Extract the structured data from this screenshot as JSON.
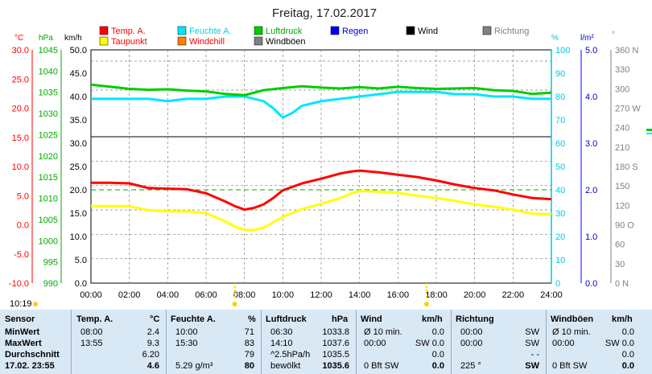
{
  "title": "Freitag, 17.02.2017",
  "legend": {
    "items": [
      {
        "label": "Temp. A.",
        "color": "#ff0000",
        "text_color": "#ff0000"
      },
      {
        "label": "Feuchte A.",
        "color": "#00e5ff",
        "text_color": "#00d0e8"
      },
      {
        "label": "Luftdruck",
        "color": "#00cc00",
        "text_color": "#00aa00"
      },
      {
        "label": "Regen",
        "color": "#0000ff",
        "text_color": "#0000cc"
      },
      {
        "label": "Wind",
        "color": "#000000",
        "text_color": "#000000"
      },
      {
        "label": "Richtung",
        "color": "#808080",
        "text_color": "#808080"
      },
      {
        "label": "Taupunkt",
        "color": "#ffff00",
        "text_color": "#ff0000"
      },
      {
        "label": "Windchill",
        "color": "#ff8000",
        "text_color": "#ff0000"
      },
      {
        "label": "Windböen",
        "color": "#808080",
        "text_color": "#000000"
      }
    ]
  },
  "axis_units": {
    "temp": "°C",
    "pressure": "hPa",
    "wind": "km/h",
    "humidity": "%",
    "rain": "l/m²",
    "direction": "°"
  },
  "colors": {
    "temp": "#ff0000",
    "dew": "#ffff00",
    "humidity": "#00e5ff",
    "pressure": "#00cc00",
    "grid": "#808080",
    "axis_rain": "#0000ff",
    "ref_line": "#00aa00"
  },
  "status": {
    "time_label": "10:19"
  },
  "chart_data": {
    "type": "line",
    "title": "Freitag, 17.02.2017",
    "x_ticks": [
      "00:00",
      "02:00",
      "04:00",
      "06:00",
      "08:00",
      "10:00",
      "12:00",
      "14:00",
      "16:00",
      "18:00",
      "20:00",
      "22:00",
      "24:00"
    ],
    "axes": {
      "temp_c": {
        "range": [
          -10,
          30
        ],
        "ticks": [
          "30.0",
          "25.0",
          "20.0",
          "15.0",
          "10.0",
          "5.0",
          "0.0",
          "-5.0",
          "-10.0"
        ]
      },
      "pressure_hpa": {
        "range": [
          990,
          1045
        ],
        "ticks": [
          "1045",
          "1040",
          "1035",
          "1030",
          "1025",
          "1020",
          "1015",
          "1010",
          "1005",
          "1000",
          "995",
          "990"
        ]
      },
      "wind_kmh_lower": {
        "range": [
          0,
          30
        ],
        "ticks": [
          "30.0",
          "25.0",
          "20.0",
          "15.0",
          "10.0",
          "5.0",
          "0.0"
        ]
      },
      "wind_kmh_upper": {
        "range": [
          35,
          50
        ],
        "ticks": [
          "50.0",
          "45.0",
          "40.0",
          "35.0"
        ]
      },
      "humidity_pct": {
        "range": [
          0,
          100
        ],
        "ticks": [
          "100",
          "90",
          "80",
          "70",
          "60",
          "50",
          "40",
          "30",
          "20",
          "10",
          "0"
        ]
      },
      "rain_lm2": {
        "range": [
          0,
          5
        ],
        "ticks": [
          "5.0",
          "4.0",
          "3.0",
          "2.0",
          "1.0",
          "0.0"
        ]
      },
      "direction_deg": {
        "range": [
          0,
          360
        ],
        "ticks": [
          "360 N",
          "330",
          "300",
          "270 W",
          "240",
          "210",
          "180 S",
          "150",
          "120",
          "90 O",
          "60",
          "30",
          "0 N"
        ]
      }
    },
    "series": [
      {
        "name": "Temp. A.",
        "unit": "°C",
        "x": [
          0,
          1,
          2,
          3,
          4,
          5,
          6,
          7,
          7.5,
          8,
          8.5,
          9,
          9.5,
          10,
          11,
          12,
          13,
          13.5,
          14,
          15,
          16,
          17,
          18,
          19,
          20,
          21,
          22,
          23,
          24
        ],
        "y": [
          7.2,
          7.2,
          7.1,
          6.3,
          6.2,
          6.1,
          5.4,
          4.0,
          3.2,
          2.6,
          2.9,
          3.5,
          4.6,
          5.9,
          7.1,
          7.9,
          8.8,
          9.1,
          9.3,
          9.0,
          8.6,
          8.2,
          7.6,
          6.9,
          6.3,
          5.9,
          5.2,
          4.6,
          4.4
        ]
      },
      {
        "name": "Taupunkt",
        "unit": "°C",
        "x": [
          0,
          1,
          2,
          3,
          4,
          5,
          6,
          7,
          7.5,
          8,
          8.5,
          9,
          9.5,
          10,
          11,
          12,
          13,
          13.5,
          14,
          15,
          16,
          17,
          18,
          19,
          20,
          21,
          22,
          23,
          24
        ],
        "y": [
          3.2,
          3.2,
          3.2,
          2.5,
          2.3,
          2.3,
          2.0,
          0.6,
          -0.3,
          -0.9,
          -0.9,
          -0.5,
          0.4,
          1.4,
          2.7,
          3.6,
          4.6,
          5.3,
          5.8,
          5.7,
          5.5,
          5.0,
          4.6,
          4.1,
          3.5,
          3.1,
          2.6,
          1.9,
          1.8
        ]
      },
      {
        "name": "Feuchte A.",
        "unit": "%",
        "x": [
          0,
          1,
          2,
          3,
          4,
          5,
          6,
          7,
          8,
          9,
          9.5,
          10,
          10.5,
          11,
          12,
          13,
          14,
          15,
          16,
          17,
          18,
          19,
          20,
          21,
          22,
          23,
          24
        ],
        "y": [
          79,
          79,
          79,
          79,
          78,
          79,
          79,
          80,
          80,
          78,
          75,
          71,
          73,
          76,
          78,
          79,
          80,
          81,
          82,
          82,
          82,
          81,
          81,
          80,
          80,
          79,
          79
        ]
      },
      {
        "name": "Luftdruck",
        "unit": "hPa",
        "x": [
          0,
          1,
          2,
          3,
          4,
          5,
          6,
          7,
          8,
          9,
          10,
          11,
          12,
          13,
          14,
          15,
          16,
          17,
          18,
          19,
          20,
          21,
          22,
          23,
          24
        ],
        "y": [
          1036.8,
          1036.3,
          1035.8,
          1035.6,
          1035.7,
          1035.4,
          1035.2,
          1034.6,
          1034.3,
          1035.5,
          1036.0,
          1036.4,
          1036.1,
          1035.9,
          1036.2,
          1035.9,
          1036.3,
          1036.0,
          1035.8,
          1035.9,
          1036.0,
          1035.5,
          1035.3,
          1034.6,
          1034.9
        ]
      }
    ],
    "reference_line": {
      "label": "Ø",
      "value_pct": 40
    },
    "sun_markers": [
      "08:00",
      "18:00"
    ]
  },
  "table": {
    "columns": [
      {
        "title": "Sensor",
        "unit": ""
      },
      {
        "title": "Temp. A.",
        "unit": "°C"
      },
      {
        "title": "Feuchte A.",
        "unit": "%"
      },
      {
        "title": "Luftdruck",
        "unit": "hPa"
      },
      {
        "title": "Wind",
        "unit": "km/h"
      },
      {
        "title": "Richtung",
        "unit": ""
      },
      {
        "title": "Windböen",
        "unit": "km/h"
      }
    ],
    "rows": [
      {
        "label": "MinWert",
        "temp": [
          "08:00",
          "2.4"
        ],
        "hum": [
          "10:00",
          "71"
        ],
        "press": [
          "06:30",
          "1033.8"
        ],
        "wind": [
          "Ø 10 min.",
          "0.0"
        ],
        "dir": [
          "00:00",
          "SW"
        ],
        "gust": [
          "Ø 10 min.",
          "0.0"
        ]
      },
      {
        "label": "MaxWert",
        "temp": [
          "13:55",
          "9.3"
        ],
        "hum": [
          "15:30",
          "83"
        ],
        "press": [
          "14:10",
          "1037.6"
        ],
        "wind": [
          "00:00",
          "SW 0.0"
        ],
        "dir": [
          "00:00",
          "SW"
        ],
        "gust": [
          "00:00",
          "SW 0.0"
        ]
      },
      {
        "label": "Durchschnitt",
        "temp": [
          "",
          "6.20"
        ],
        "hum": [
          "",
          "79"
        ],
        "press": [
          "^2.5hPa/h",
          "1035.5"
        ],
        "wind": [
          "",
          "0.0"
        ],
        "dir": [
          "",
          "- -"
        ],
        "gust": [
          "",
          "0.0"
        ]
      },
      {
        "label": "17.02. 23:55",
        "temp": [
          "",
          "4.6"
        ],
        "hum": [
          "5.29 g/m³",
          "80"
        ],
        "press": [
          "bewölkt",
          "1035.6"
        ],
        "wind": [
          "0 Bft SW",
          "0.0"
        ],
        "dir": [
          "225 °",
          "SW"
        ],
        "gust": [
          "0 Bft SW",
          "0.0"
        ]
      }
    ]
  }
}
